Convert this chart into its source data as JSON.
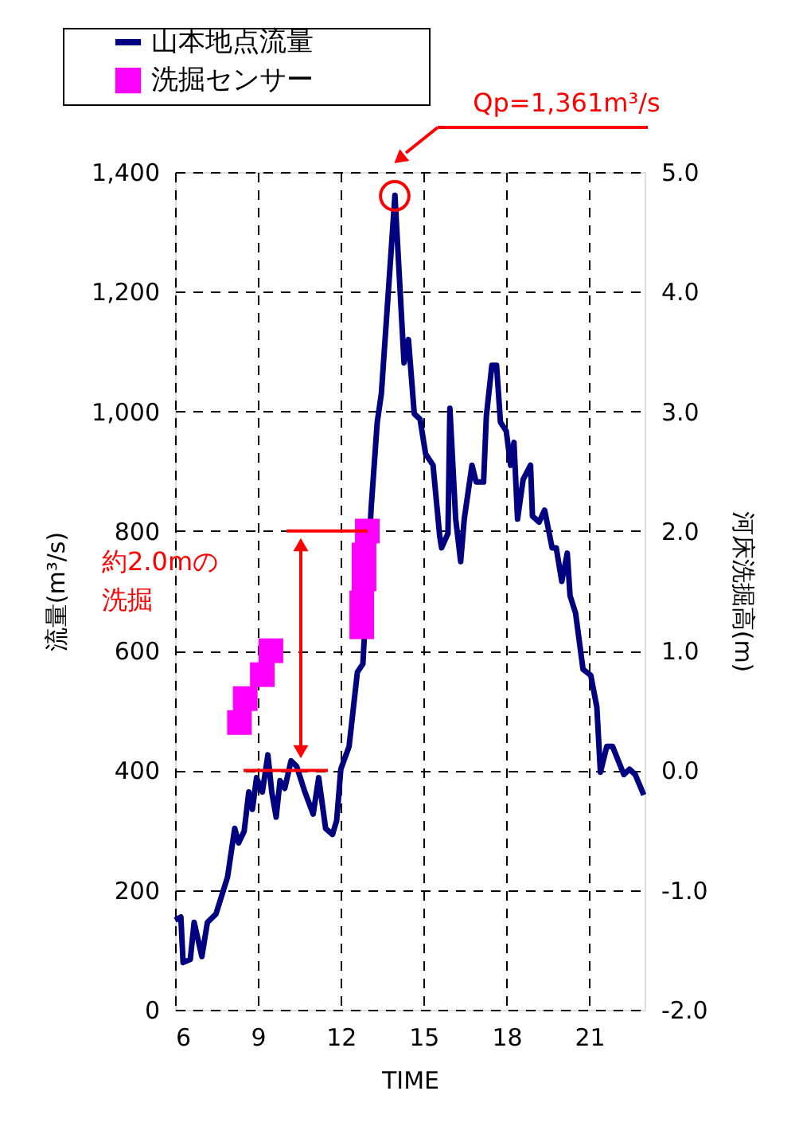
{
  "chart_data": {
    "type": "line",
    "xlabel": "TIME",
    "ylabel": "流量(m³/s)",
    "y2label": "河床洗掘高(m)",
    "xlim": [
      6,
      23
    ],
    "xticks": [
      6,
      9,
      12,
      15,
      18,
      21
    ],
    "ylim": [
      0,
      1400
    ],
    "yticks": [
      0,
      200,
      400,
      600,
      800,
      {
        "value": 1000,
        "label": "1,000"
      },
      {
        "value": 1200,
        "label": "1,200"
      },
      {
        "value": 1400,
        "label": "1,400"
      }
    ],
    "y2lim": [
      -2,
      5
    ],
    "y2ticks": [
      {
        "value": -2,
        "label": "-2.0"
      },
      {
        "value": -1,
        "label": "-1.0"
      },
      {
        "value": 0,
        "label": "0.0"
      },
      {
        "value": 1,
        "label": "1.0"
      },
      {
        "value": 2,
        "label": "2.0"
      },
      {
        "value": 3,
        "label": "3.0"
      },
      {
        "value": 4,
        "label": "4.0"
      },
      {
        "value": 5,
        "label": "5.0"
      }
    ],
    "grid": true,
    "legend": "top left",
    "line_style": "solid",
    "series": [
      {
        "name": "山本地点流量",
        "color": "#000080",
        "marker": "none",
        "x": [
          6.0,
          6.21,
          6.29,
          6.55,
          6.69,
          6.97,
          7.17,
          7.48,
          7.9,
          8.16,
          8.3,
          8.5,
          8.67,
          8.8,
          8.95,
          9.16,
          9.36,
          9.5,
          9.66,
          9.8,
          9.97,
          10.2,
          10.4,
          10.7,
          11.0,
          11.2,
          11.45,
          11.7,
          11.85,
          12.0,
          12.3,
          12.6,
          12.8,
          13.1,
          13.32,
          13.47,
          13.96,
          14.29,
          14.45,
          14.66,
          14.87,
          15.07,
          15.34,
          15.58,
          15.65,
          15.88,
          15.95,
          16.16,
          16.34,
          16.47,
          16.75,
          16.9,
          17.17,
          17.27,
          17.47,
          17.64,
          17.78,
          17.99,
          18.15,
          18.27,
          18.4,
          18.6,
          18.87,
          18.94,
          19.18,
          19.38,
          19.65,
          19.8,
          20.0,
          20.2,
          20.3,
          20.5,
          20.77,
          21.05,
          21.27,
          21.4,
          21.63,
          21.84,
          22.25,
          22.45,
          22.66,
          22.97
        ],
        "values": [
          150,
          155,
          79,
          84,
          146,
          89,
          146,
          160,
          222,
          303,
          279,
          298,
          364,
          335,
          388,
          364,
          426,
          364,
          322,
          383,
          370,
          416,
          407,
          364,
          327,
          388,
          303,
          293,
          316,
          402,
          440,
          564,
          578,
          839,
          982,
          1030,
          1361,
          1081,
          1120,
          996,
          987,
          929,
          910,
          792,
          772,
          796,
          1005,
          820,
          749,
          820,
          910,
          882,
          882,
          992,
          1077,
          1077,
          982,
          967,
          910,
          948,
          820,
          886,
          910,
          825,
          815,
          835,
          772,
          772,
          716,
          763,
          692,
          663,
          569,
          559,
          506,
          397,
          440,
          440,
          393,
          402,
          393,
          359
        ]
      },
      {
        "name": "洗掘センサー",
        "type": "scatter",
        "axis": "y2",
        "marker": "square",
        "color": "#ff00ff",
        "x": [
          8.33,
          8.54,
          9.16,
          9.47,
          12.76,
          12.76,
          12.84,
          12.84,
          12.96
        ],
        "values": [
          0.4,
          0.6,
          0.8,
          1.0,
          1.2,
          1.4,
          1.6,
          1.8,
          2.0
        ]
      }
    ],
    "ref_lines": [
      {
        "axis": "y2",
        "value": 0,
        "color": "#ff0000"
      },
      {
        "axis": "y2",
        "value": 2,
        "color": "#ff0000"
      }
    ],
    "annotations": [
      "Qp=1,361m³/s",
      "約2.0mの",
      "洗掘"
    ]
  }
}
